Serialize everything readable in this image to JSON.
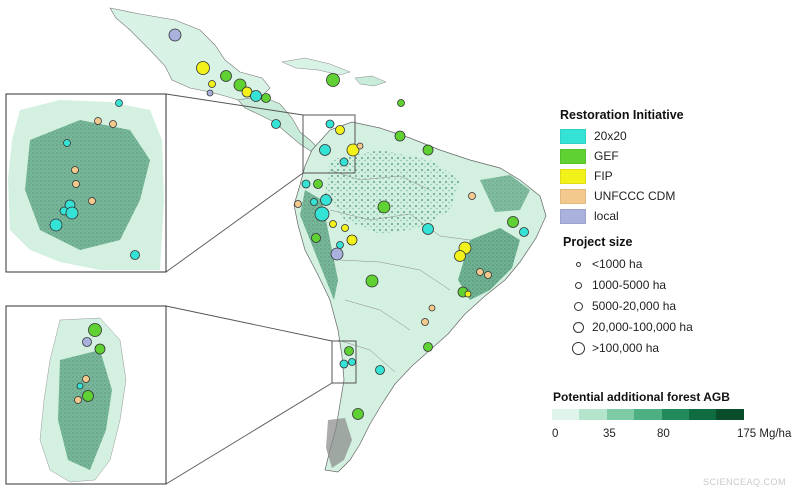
{
  "legend_initiative": {
    "title": "Restoration Initiative",
    "items": [
      {
        "label": "20x20",
        "color": "#35e3d6"
      },
      {
        "label": "GEF",
        "color": "#5fd132"
      },
      {
        "label": "FIP",
        "color": "#f2f21a"
      },
      {
        "label": "UNFCCC CDM",
        "color": "#f3c98d"
      },
      {
        "label": "local",
        "color": "#a9b1dc"
      }
    ]
  },
  "legend_size": {
    "title": "Project size",
    "items": [
      {
        "label": "<1000 ha"
      },
      {
        "label": "1000-5000 ha"
      },
      {
        "label": "5000-20,000 ha"
      },
      {
        "label": "20,000-100,000 ha"
      },
      {
        "label": ">100,000 ha"
      }
    ]
  },
  "legend_agb": {
    "title": "Potential additional forest AGB",
    "ramp_colors": [
      "#dff4ea",
      "#b5e4cc",
      "#7ecba6",
      "#4daf82",
      "#228a5c",
      "#0f6b40",
      "#0a4d2d"
    ],
    "ticks": [
      "0",
      "35",
      "80",
      "175 Mg/ha"
    ]
  },
  "watermark": "SCIENCEAQ.COM"
}
